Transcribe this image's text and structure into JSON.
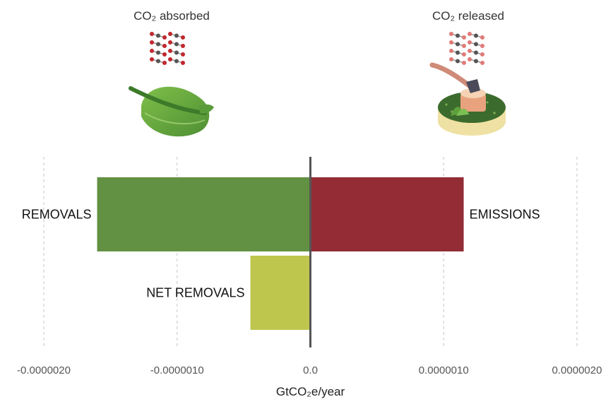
{
  "illustrations": {
    "absorbed_caption": "CO₂ absorbed",
    "released_caption": "CO₂ released",
    "absorbed_icon": "leaf-icon",
    "released_icon": "tree-stump-axe-icon",
    "molecule_icon": "co2-molecule-icon"
  },
  "chart_data": {
    "type": "bar",
    "orientation": "horizontal",
    "bars": [
      {
        "label": "REMOVALS",
        "start": -1.6e-06,
        "end": 0,
        "row": 0,
        "color": "#629143",
        "label_side": "left"
      },
      {
        "label": "EMISSIONS",
        "start": 0,
        "end": 1.15e-06,
        "row": 0,
        "color": "#932c35",
        "label_side": "right"
      },
      {
        "label": "NET REMOVALS",
        "start": -4.5e-07,
        "end": 0,
        "row": 1,
        "color": "#bec64d",
        "label_side": "left"
      }
    ],
    "xlim": [
      -2e-06,
      2e-06
    ],
    "xticks": [
      -2e-06,
      -1e-06,
      0,
      1e-06,
      2e-06
    ],
    "xtick_labels": [
      "-0.0000020",
      "-0.0000010",
      "0.0",
      "0.0000010",
      "0.0000020"
    ],
    "xlabel": "GtCO₂e/year",
    "ylabel": "",
    "title": "",
    "grid": "vertical-dashed",
    "legend": "none"
  }
}
